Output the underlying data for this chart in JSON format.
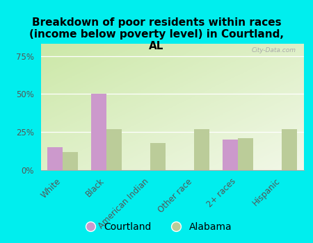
{
  "title": "Breakdown of poor residents within races\n(income below poverty level) in Courtland,\nAL",
  "categories": [
    "White",
    "Black",
    "American Indian",
    "Other race",
    "2+ races",
    "Hispanic"
  ],
  "courtland_values": [
    15,
    50,
    0,
    0,
    20,
    0
  ],
  "alabama_values": [
    12,
    27,
    18,
    27,
    21,
    27
  ],
  "courtland_color": "#cc99cc",
  "alabama_color": "#bbcc99",
  "bg_color": "#00eeee",
  "ylabel_ticks": [
    "0%",
    "25%",
    "50%",
    "75%"
  ],
  "ytick_values": [
    0,
    25,
    50,
    75
  ],
  "ylim": [
    0,
    83
  ],
  "bar_width": 0.35,
  "title_fontsize": 11,
  "tick_fontsize": 8.5,
  "legend_fontsize": 10
}
